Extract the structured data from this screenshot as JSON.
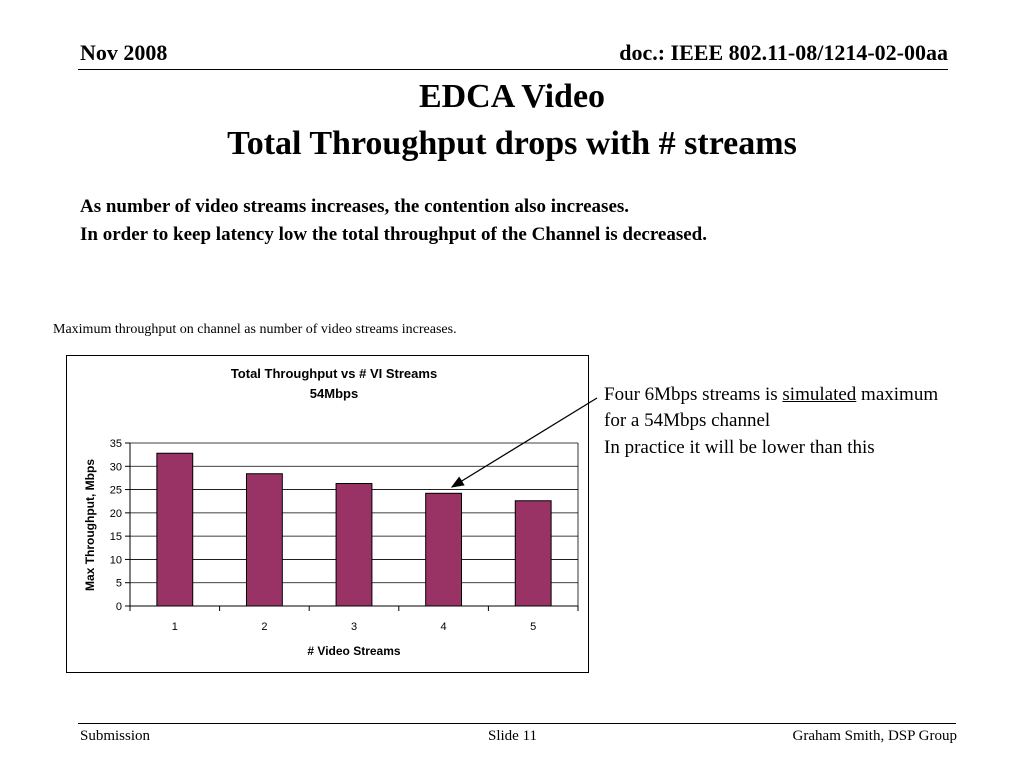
{
  "header": {
    "left": "Nov 2008",
    "right": "doc.: IEEE 802.11-08/1214-02-00aa"
  },
  "title": {
    "line1": "EDCA Video",
    "line2": "Total Throughput drops with # streams"
  },
  "body": {
    "line1": "As number of video streams increases, the contention also increases.",
    "line2": "In order to keep latency low the total throughput of the Channel is decreased."
  },
  "chart_caption": "Maximum throughput on channel as number of video streams increases.",
  "note": {
    "line1_pre": "Four 6Mbps streams is ",
    "line1_em": "simulated",
    "line1_post": " maximum",
    "line2": "for a 54Mbps channel",
    "line3": "In practice it will be lower than this"
  },
  "footer": {
    "left": "Submission",
    "middle": "Slide 11",
    "right": "Graham Smith, DSP Group"
  },
  "chart_data": {
    "type": "bar",
    "title": "Total Throughput vs # VI Streams",
    "subtitle": "54Mbps",
    "xlabel": "# Video Streams",
    "ylabel": "Max Throughput, Mbps",
    "categories": [
      "1",
      "2",
      "3",
      "4",
      "5"
    ],
    "values": [
      32.8,
      28.4,
      26.3,
      24.2,
      22.6
    ],
    "ylim": [
      0,
      35
    ],
    "yticks": [
      0,
      5,
      10,
      15,
      20,
      25,
      30,
      35
    ],
    "bar_color": "#993366",
    "grid": true,
    "legend": false,
    "annotation_arrow_target": "4"
  }
}
